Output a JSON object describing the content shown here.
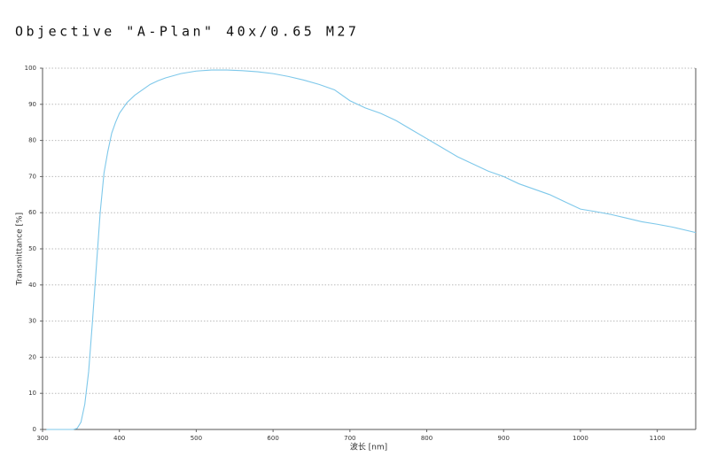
{
  "chart_data": {
    "type": "line",
    "title": "Objective \"A-Plan\" 40x/0.65 M27",
    "x_label": "波长 [nm]",
    "y_label": "Transmittance [%]",
    "x": [
      305,
      340,
      345,
      350,
      355,
      360,
      365,
      370,
      375,
      380,
      385,
      390,
      395,
      400,
      410,
      420,
      430,
      440,
      450,
      460,
      480,
      500,
      520,
      540,
      560,
      580,
      600,
      620,
      640,
      660,
      680,
      700,
      720,
      740,
      760,
      780,
      800,
      820,
      840,
      860,
      880,
      900,
      920,
      940,
      960,
      980,
      1000,
      1020,
      1040,
      1060,
      1080,
      1100,
      1120,
      1150
    ],
    "series": [
      {
        "name": "Transmittance",
        "color": "#7ec8ea",
        "values": [
          0,
          0,
          0.3,
          2,
          7,
          16,
          30,
          45,
          60,
          71,
          77,
          82,
          85,
          87.5,
          90.5,
          92.5,
          94,
          95.5,
          96.5,
          97.3,
          98.5,
          99.2,
          99.5,
          99.5,
          99.3,
          99,
          98.5,
          97.7,
          96.7,
          95.5,
          94,
          91,
          89,
          87.5,
          85.5,
          83,
          80.5,
          78,
          75.5,
          73.5,
          71.5,
          70,
          68,
          66.5,
          65,
          63,
          61,
          60.3,
          59.5,
          58.5,
          57.5,
          56.8,
          56,
          54.5
        ]
      }
    ],
    "xlim": [
      300,
      1150
    ],
    "xticks": [
      300,
      400,
      500,
      600,
      700,
      800,
      900,
      1000,
      1100
    ],
    "ylim": [
      0,
      100
    ],
    "yticks": [
      0,
      10,
      20,
      30,
      40,
      50,
      60,
      70,
      80,
      90,
      100
    ],
    "grid": true
  }
}
